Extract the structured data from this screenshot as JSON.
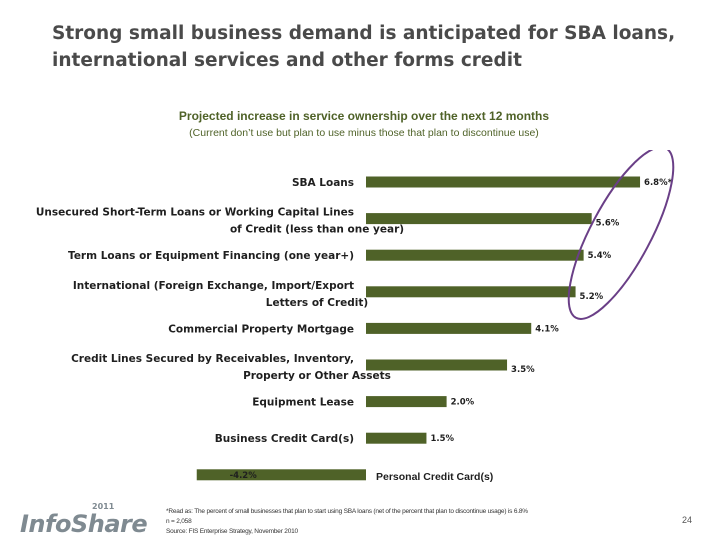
{
  "slide": {
    "title": "Strong small business demand is anticipated for SBA loans, international services and other forms credit",
    "page_number": "24"
  },
  "logo": {
    "text": "InfoShare",
    "year": "2011"
  },
  "footnotes": [
    "*Read as: The percent of small businesses that plan to start using SBA loans (net of the percent that plan to discontinue usage) is 6.8%",
    "n = 2,058",
    "Source: FIS Enterprise Strategy, November 2010"
  ],
  "chart_data": {
    "type": "bar",
    "orientation": "horizontal",
    "title": "Projected increase in service ownership over the next 12 months",
    "subtitle": "(Current don’t use but plan to use minus those that plan to discontinue use)",
    "categories": [
      "SBA Loans",
      "Unsecured Short-Term Loans or Working Capital Lines of Credit (less than one year)",
      "Term Loans or Equipment Financing (one year+)",
      "International (Foreign Exchange, Import/Export Letters of Credit)",
      "Commercial Property Mortgage",
      "Credit Lines Secured by Receivables, Inventory, Property or Other Assets",
      "Equipment Lease",
      "Business Credit Card(s)",
      "Personal Credit Card(s)"
    ],
    "category_lines": [
      [
        "SBA Loans"
      ],
      [
        "Unsecured Short-Term Loans or Working Capital Lines",
        "of Credit (less than one year)"
      ],
      [
        "Term Loans or Equipment Financing (one year+)"
      ],
      [
        "International (Foreign Exchange, Import/Export",
        "Letters of Credit)"
      ],
      [
        "Commercial Property Mortgage"
      ],
      [
        "Credit Lines Secured by Receivables, Inventory,",
        "Property or Other Assets"
      ],
      [
        "Equipment Lease"
      ],
      [
        "Business Credit Card(s)"
      ],
      [
        "Personal Credit Card(s)"
      ]
    ],
    "values": [
      6.8,
      5.6,
      5.4,
      5.2,
      4.1,
      3.5,
      2.0,
      1.5,
      -4.2
    ],
    "value_labels": [
      "6.8%*",
      "5.6%",
      "5.4%",
      "5.2%",
      "4.1%",
      "3.5%",
      "2.0%",
      "1.5%",
      "-4.2%"
    ],
    "unit": "%",
    "xlim": [
      -4.2,
      6.8
    ],
    "bar_color": "#4f6228",
    "highlight": {
      "shape": "ellipse",
      "color": "#6a3f87",
      "covers": [
        "SBA Loans",
        "Unsecured Short-Term Loans or Working Capital Lines of Credit (less than one year)",
        "Term Loans or Equipment Financing (one year+)",
        "International (Foreign Exchange, Import/Export Letters of Credit)"
      ]
    }
  },
  "colors": {
    "title": "#4a4a4a",
    "chart_title": "#4f6228",
    "bar": "#4f6228",
    "highlight": "#6a3f87"
  }
}
